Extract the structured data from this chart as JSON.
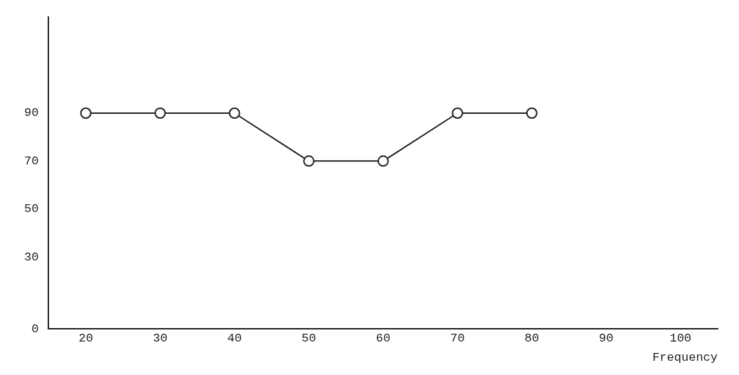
{
  "chart_data": {
    "type": "line",
    "xlabel": "Frequency",
    "categories": [
      "20",
      "30",
      "40",
      "50",
      "60",
      "70",
      "80",
      "90",
      "100"
    ],
    "series": [
      {
        "color": "#222222",
        "values": [
          90,
          90,
          90,
          70,
          70,
          90,
          90,
          null,
          null
        ]
      }
    ],
    "ylim": [
      0,
      130
    ],
    "yticks": [
      0,
      30,
      50,
      70,
      90
    ],
    "marker": "circle",
    "line_style": "solid",
    "grid": false,
    "legend": false
  }
}
